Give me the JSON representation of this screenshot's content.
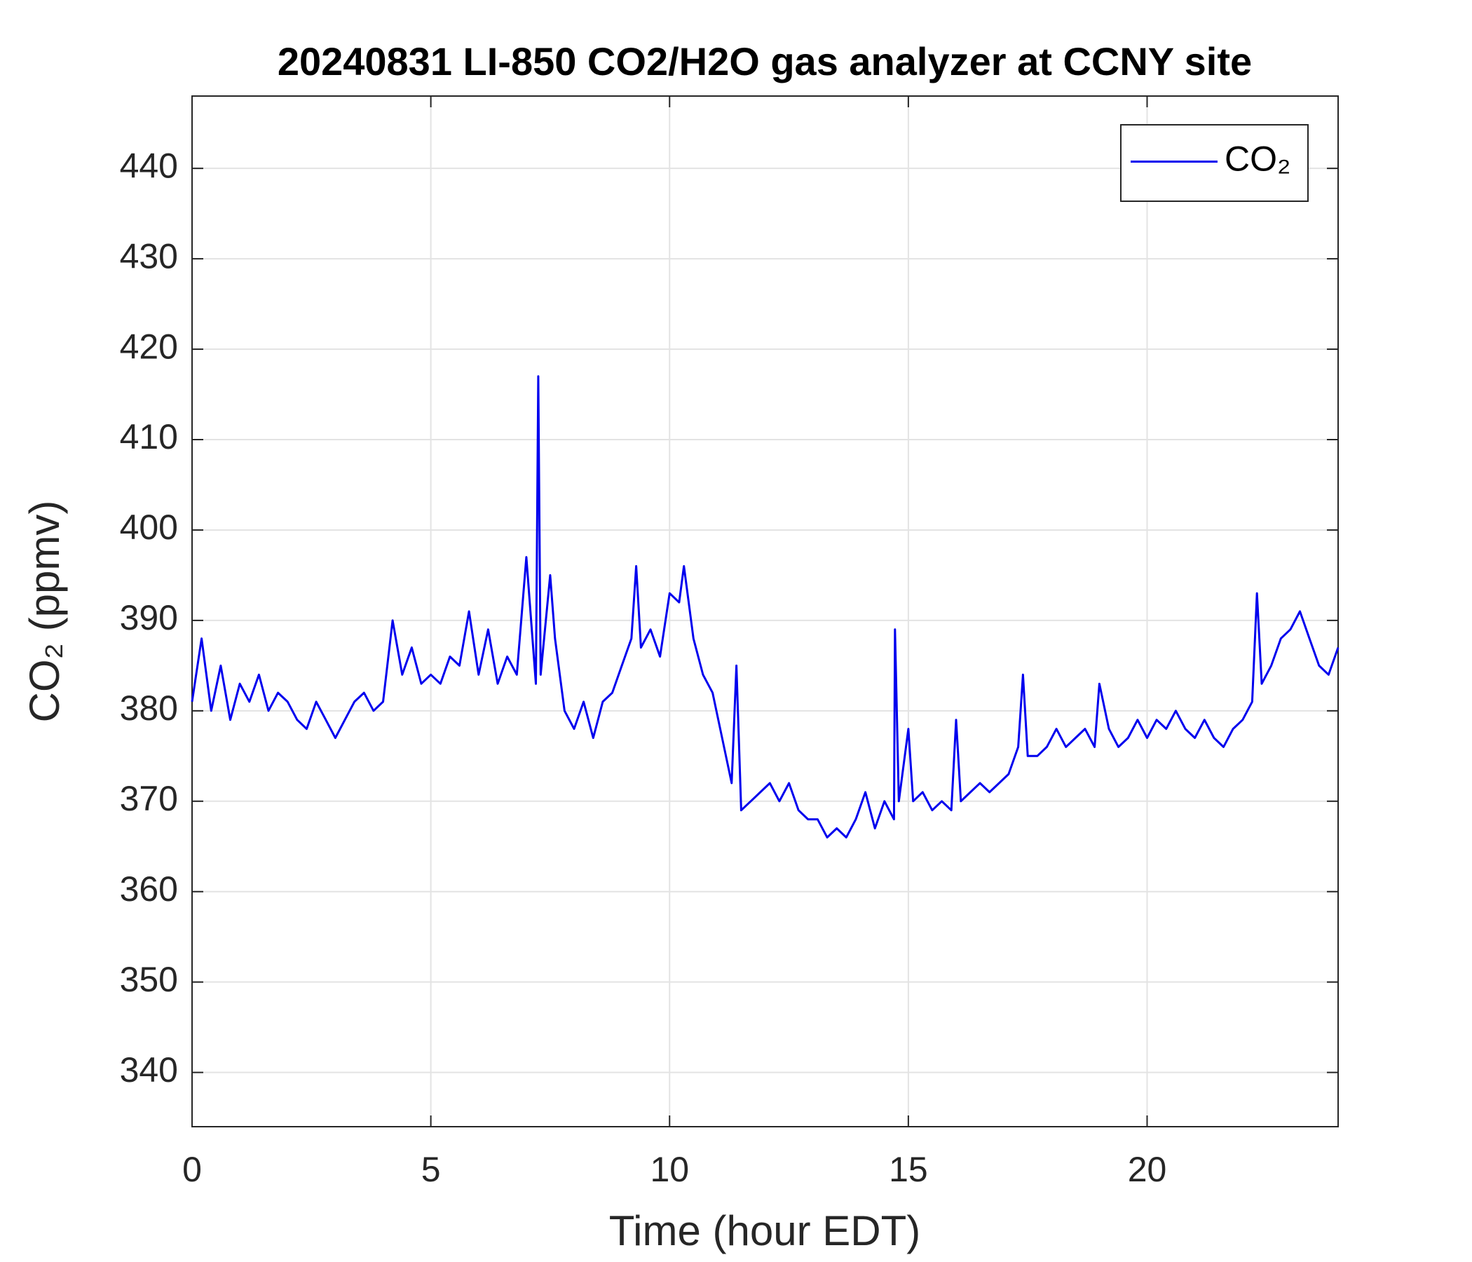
{
  "chart_data": {
    "type": "line",
    "title": "20240831 LI-850 CO2/H2O gas analyzer at CCNY site",
    "xlabel": "Time (hour EDT)",
    "ylabel": "CO₂ (ppmv)",
    "xlim": [
      0,
      24
    ],
    "xticks": [
      0,
      5,
      10,
      15,
      20
    ],
    "ylim": [
      334,
      448
    ],
    "yticks": [
      340,
      350,
      360,
      370,
      380,
      390,
      400,
      410,
      420,
      430,
      440
    ],
    "grid": true,
    "legend": "upper right",
    "x": [
      0.0,
      0.2,
      0.4,
      0.6,
      0.8,
      1.0,
      1.2,
      1.4,
      1.6,
      1.8,
      2.0,
      2.2,
      2.4,
      2.6,
      2.8,
      3.0,
      3.2,
      3.4,
      3.6,
      3.8,
      4.0,
      4.2,
      4.4,
      4.6,
      4.8,
      5.0,
      5.2,
      5.4,
      5.6,
      5.8,
      6.0,
      6.2,
      6.4,
      6.6,
      6.8,
      7.0,
      7.2,
      7.25,
      7.3,
      7.5,
      7.6,
      7.8,
      8.0,
      8.2,
      8.4,
      8.6,
      8.8,
      9.0,
      9.2,
      9.3,
      9.4,
      9.6,
      9.8,
      10.0,
      10.2,
      10.3,
      10.5,
      10.7,
      10.9,
      11.1,
      11.3,
      11.4,
      11.5,
      11.7,
      11.9,
      12.1,
      12.3,
      12.5,
      12.7,
      12.9,
      13.1,
      13.3,
      13.5,
      13.7,
      13.9,
      14.1,
      14.3,
      14.5,
      14.7,
      14.72,
      14.8,
      15.0,
      15.1,
      15.3,
      15.5,
      15.7,
      15.9,
      16.0,
      16.1,
      16.3,
      16.5,
      16.7,
      16.9,
      17.1,
      17.3,
      17.4,
      17.5,
      17.7,
      17.9,
      18.1,
      18.3,
      18.5,
      18.7,
      18.9,
      19.0,
      19.2,
      19.4,
      19.6,
      19.8,
      20.0,
      20.2,
      20.4,
      20.6,
      20.8,
      21.0,
      21.2,
      21.4,
      21.6,
      21.8,
      22.0,
      22.2,
      22.3,
      22.4,
      22.6,
      22.8,
      23.0,
      23.2,
      23.4,
      23.6,
      23.8,
      24.0
    ],
    "series": [
      {
        "name": "CO₂",
        "color": "#0000ee",
        "values": [
          381,
          388,
          380,
          385,
          379,
          383,
          381,
          384,
          380,
          382,
          381,
          379,
          378,
          381,
          379,
          377,
          379,
          381,
          382,
          380,
          381,
          390,
          384,
          387,
          383,
          384,
          383,
          386,
          385,
          391,
          384,
          389,
          383,
          386,
          384,
          397,
          383,
          417,
          384,
          395,
          388,
          380,
          378,
          381,
          377,
          381,
          382,
          385,
          388,
          396,
          387,
          389,
          386,
          393,
          392,
          396,
          388,
          384,
          382,
          377,
          372,
          385,
          369,
          370,
          371,
          372,
          370,
          372,
          369,
          368,
          368,
          366,
          367,
          366,
          368,
          371,
          367,
          370,
          368,
          389,
          370,
          378,
          370,
          371,
          369,
          370,
          369,
          379,
          370,
          371,
          372,
          371,
          372,
          373,
          376,
          384,
          375,
          375,
          376,
          378,
          376,
          377,
          378,
          376,
          383,
          378,
          376,
          377,
          379,
          377,
          379,
          378,
          380,
          378,
          377,
          379,
          377,
          376,
          378,
          379,
          381,
          393,
          383,
          385,
          388,
          389,
          391,
          388,
          385,
          384,
          387
        ]
      }
    ]
  }
}
